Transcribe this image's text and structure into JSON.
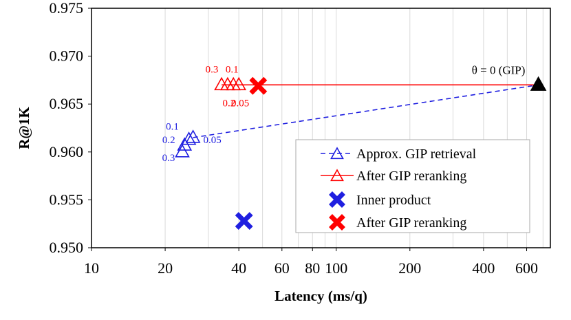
{
  "chart_data": {
    "type": "scatter",
    "xlabel": "Latency (ms/q)",
    "ylabel": "R@1K",
    "x_scale": "log",
    "xlim": [
      10,
      750
    ],
    "ylim": [
      0.95,
      0.975
    ],
    "x_ticks": [
      10,
      20,
      40,
      60,
      80,
      100,
      200,
      400,
      600
    ],
    "x_tick_labels": [
      "10",
      "20",
      "40",
      "60",
      "80",
      "100",
      "200",
      "400",
      "600"
    ],
    "y_ticks": [
      0.95,
      0.955,
      0.96,
      0.965,
      0.97,
      0.975
    ],
    "y_tick_labels": [
      "0.950",
      "0.955",
      "0.960",
      "0.965",
      "0.970",
      "0.975"
    ],
    "grid": {
      "x": "vertical-minor",
      "y": "none"
    },
    "legend_position": "lower-right",
    "series": [
      {
        "name": "Approx. GIP retrieval",
        "color": "#1f1fe0",
        "marker": "open-triangle",
        "line": "dashed",
        "points": [
          {
            "x": 23.5,
            "y": 0.96,
            "label": "0.3"
          },
          {
            "x": 24.0,
            "y": 0.9607,
            "label": "0.2"
          },
          {
            "x": 25.0,
            "y": 0.9613,
            "label": "0.1"
          },
          {
            "x": 26.0,
            "y": 0.9615,
            "label": "0.05"
          },
          {
            "x": 670,
            "y": 0.967,
            "label": ""
          }
        ]
      },
      {
        "name": "After GIP reranking",
        "color": "#ff0000",
        "marker": "open-triangle",
        "line": "solid",
        "points": [
          {
            "x": 34,
            "y": 0.967,
            "label": "0.3"
          },
          {
            "x": 36,
            "y": 0.967,
            "label": "0.2"
          },
          {
            "x": 38,
            "y": 0.967,
            "label": "0.1"
          },
          {
            "x": 40,
            "y": 0.967,
            "label": "0.05"
          },
          {
            "x": 670,
            "y": 0.967,
            "label": ""
          }
        ]
      },
      {
        "name": "Inner product",
        "color": "#1f1fe0",
        "marker": "x",
        "line": "none",
        "points": [
          {
            "x": 42,
            "y": 0.9528
          }
        ]
      },
      {
        "name": "After GIP reranking",
        "color": "#ff0000",
        "marker": "x",
        "line": "none",
        "points": [
          {
            "x": 48,
            "y": 0.9669
          }
        ]
      }
    ],
    "reference_point": {
      "x": 670,
      "y": 0.967,
      "color": "#000000",
      "marker": "filled-triangle",
      "label": "θ = 0 (GIP)"
    }
  }
}
